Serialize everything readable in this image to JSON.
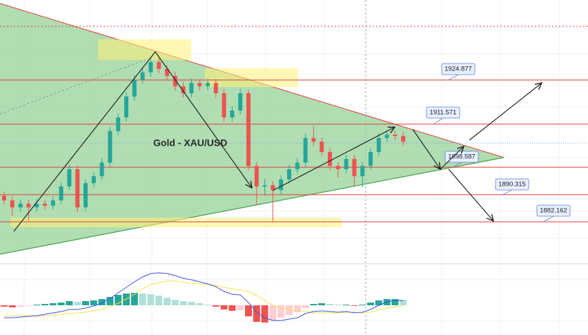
{
  "chart_data": [
    {
      "type": "candlestick",
      "title": "Gold - XAU/USD",
      "open": [
        1890.0,
        1888.6,
        1886.5,
        1887.6,
        1886.5,
        1887.6,
        1887.0,
        1888.6,
        1892.8,
        1898.0,
        1886.5,
        1893.8,
        1895.9,
        1900.0,
        1909.5,
        1913.6,
        1919.9,
        1925.0,
        1927.2,
        1930.3,
        1928.2,
        1926.1,
        1923.0,
        1920.9,
        1924.0,
        1923.0,
        1924.0,
        1920.9,
        1913.6,
        1915.7,
        1920.9,
        1899.0,
        1892.8,
        1893.2,
        1891.7,
        1894.9,
        1898.0,
        1900.0,
        1907.4,
        1906.3,
        1903.2,
        1899.0,
        1898.0,
        1901.1,
        1895.9,
        1899.0,
        1903.2,
        1907.4,
        1908.4,
        1908.0
      ],
      "high": [
        1891.2,
        1889.8,
        1888.9,
        1888.8,
        1889.0,
        1888.7,
        1889.9,
        1894.0,
        1899.4,
        1899.1,
        1895.0,
        1897.2,
        1901.3,
        1910.8,
        1914.9,
        1921.2,
        1926.4,
        1928.5,
        1931.6,
        1931.5,
        1929.4,
        1927.3,
        1924.2,
        1925.3,
        1925.2,
        1925.3,
        1925.2,
        1922.1,
        1917.0,
        1922.2,
        1922.0,
        1900.2,
        1895.0,
        1894.4,
        1896.1,
        1899.3,
        1901.3,
        1908.7,
        1911.0,
        1907.5,
        1904.4,
        1900.2,
        1902.4,
        1902.3,
        1900.3,
        1904.5,
        1908.7,
        1909.7,
        1909.6,
        1909.2
      ],
      "low": [
        1887.4,
        1884.0,
        1885.3,
        1882.5,
        1885.2,
        1885.8,
        1885.9,
        1887.5,
        1891.6,
        1885.0,
        1885.4,
        1892.6,
        1894.8,
        1898.9,
        1908.3,
        1912.4,
        1918.7,
        1923.8,
        1926.0,
        1926.9,
        1924.8,
        1921.7,
        1919.6,
        1919.7,
        1921.8,
        1921.9,
        1919.6,
        1912.3,
        1912.4,
        1914.5,
        1897.7,
        1887.5,
        1890.4,
        1882.2,
        1890.5,
        1893.7,
        1896.8,
        1898.8,
        1905.0,
        1902.0,
        1897.7,
        1895.5,
        1896.8,
        1893.0,
        1892.5,
        1897.8,
        1902.0,
        1906.2,
        1906.8,
        1905.1
      ],
      "close": [
        1888.6,
        1886.5,
        1887.6,
        1886.5,
        1887.6,
        1887.0,
        1888.6,
        1892.8,
        1898.0,
        1886.5,
        1893.8,
        1895.9,
        1900.0,
        1909.5,
        1913.6,
        1919.9,
        1925.0,
        1927.2,
        1930.3,
        1928.2,
        1926.1,
        1923.0,
        1920.9,
        1924.0,
        1923.0,
        1924.0,
        1920.9,
        1913.6,
        1915.7,
        1920.9,
        1899.0,
        1892.8,
        1893.2,
        1891.7,
        1894.9,
        1898.0,
        1900.0,
        1907.4,
        1906.3,
        1903.2,
        1899.0,
        1898.0,
        1901.1,
        1895.9,
        1899.0,
        1903.2,
        1907.4,
        1908.4,
        1908.0,
        1906.3
      ],
      "up_color": "#26a69a",
      "down_color": "#ef5350",
      "levels": [
        1924.877,
        1911.571,
        1898.587,
        1890.315,
        1882.162
      ],
      "level_color": "#e53935",
      "ylim": [
        1869.9,
        1949.0
      ]
    },
    {
      "type": "macd",
      "histogram": [
        -0.1,
        -0.15,
        -0.1,
        -0.05,
        0.05,
        0.1,
        0.15,
        0.2,
        0.3,
        0.25,
        0.3,
        0.35,
        0.45,
        0.6,
        0.75,
        0.85,
        0.9,
        0.85,
        0.8,
        0.7,
        0.55,
        0.4,
        0.3,
        0.25,
        0.15,
        0.05,
        -0.1,
        -0.3,
        -0.4,
        -0.35,
        -0.8,
        -1.2,
        -1.25,
        -1.1,
        -0.9,
        -0.7,
        -0.5,
        -0.2,
        0.1,
        0.15,
        0.1,
        0.05,
        0.05,
        -0.05,
        0.05,
        0.2,
        0.35,
        0.45,
        0.45,
        0.4
      ],
      "macd": [
        -0.9,
        -0.9,
        -0.85,
        -0.8,
        -0.75,
        -0.65,
        -0.55,
        -0.45,
        -0.3,
        -0.3,
        -0.2,
        -0.05,
        0.15,
        0.5,
        0.9,
        1.3,
        1.7,
        2.05,
        2.3,
        2.35,
        2.3,
        2.15,
        1.95,
        1.85,
        1.7,
        1.55,
        1.35,
        1.0,
        0.8,
        0.75,
        0.2,
        -0.5,
        -0.9,
        -1.1,
        -1.1,
        -1.0,
        -0.9,
        -0.6,
        -0.45,
        -0.4,
        -0.45,
        -0.5,
        -0.45,
        -0.55,
        -0.5,
        -0.3,
        0,
        0.25,
        0.35,
        0.35
      ],
      "signal": [
        -0.8,
        -0.75,
        -0.75,
        -0.75,
        -0.8,
        -0.75,
        -0.7,
        -0.65,
        -0.6,
        -0.55,
        -0.5,
        -0.4,
        -0.3,
        -0.1,
        0.15,
        0.45,
        0.8,
        1.2,
        1.5,
        1.65,
        1.75,
        1.75,
        1.65,
        1.6,
        1.55,
        1.5,
        1.45,
        1.3,
        1.2,
        1.1,
        1.0,
        0.7,
        0.35,
        0,
        -0.2,
        -0.3,
        -0.4,
        -0.4,
        -0.55,
        -0.55,
        -0.55,
        -0.55,
        -0.5,
        -0.5,
        -0.55,
        -0.5,
        -0.35,
        -0.2,
        -0.1,
        -0.05
      ],
      "colors": {
        "pos_up": "#26a69a",
        "pos_down": "#b2dfdb",
        "neg_down": "#ef5350",
        "neg_up": "#ffcdd2",
        "macd": "#3f51e0",
        "signal": "#f5e342"
      },
      "ylim": [
        -2.15,
        2.85
      ]
    }
  ]
}
